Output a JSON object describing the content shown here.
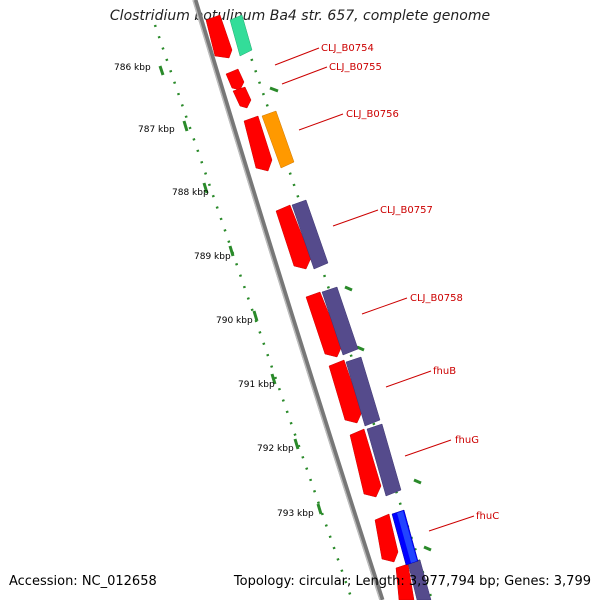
{
  "title": "Clostridium botulinum Ba4 str. 657, complete genome",
  "footer": {
    "accession": "Accession: NC_012658",
    "summary": "Topology: circular; Length: 3,977,794 bp; Genes: 3,799"
  },
  "colors": {
    "backbone": "#888888",
    "tick": "#2a8a2a",
    "label": "#cc0000",
    "cds_red": "#ff0000",
    "cds_purple": "#554b8c",
    "cds_orange": "#ff9900",
    "cds_blue": "#0000ff",
    "cds_teal": "#33dd99"
  },
  "scale_labels": [
    "786 kbp",
    "787 kbp",
    "788 kbp",
    "789 kbp",
    "790 kbp",
    "791 kbp",
    "792 kbp",
    "793 kbp"
  ],
  "gene_labels": [
    "CLJ_B0754",
    "CLJ_B0755",
    "CLJ_B0756",
    "CLJ_B0757",
    "CLJ_B0758",
    "fhuB",
    "fhuG",
    "fhuC"
  ]
}
